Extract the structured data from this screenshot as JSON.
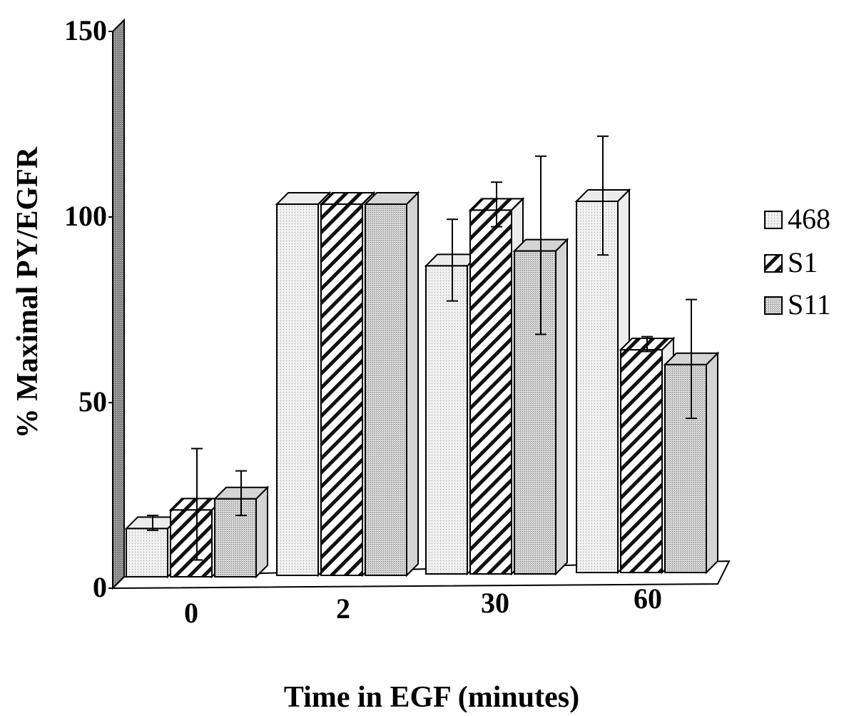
{
  "chart_data": {
    "type": "bar",
    "ylabel": "% Maximal PY/EGFR",
    "xlabel": "Time in EGF (minutes)",
    "categories": [
      "0",
      "2",
      "30",
      "60"
    ],
    "ylim": [
      0,
      150
    ],
    "yticks": [
      "0",
      "50",
      "100",
      "150"
    ],
    "series": [
      {
        "name": "468",
        "values": [
          13,
          100,
          83,
          100
        ],
        "errors": [
          2,
          0,
          11,
          16
        ],
        "pattern": "dotted-light"
      },
      {
        "name": "S1",
        "values": [
          18,
          100,
          98,
          60
        ],
        "errors": [
          15,
          0,
          6,
          2
        ],
        "pattern": "hatched"
      },
      {
        "name": "S11",
        "values": [
          21,
          100,
          87,
          56
        ],
        "errors": [
          6,
          0,
          24,
          16
        ],
        "pattern": "dotted-dark"
      }
    ],
    "legend_position": "right",
    "style": "3d"
  },
  "colors": {
    "bar_light": "#ececec",
    "bar_dark": "#d4d4d4",
    "wall": "#8a8a8a",
    "outline": "#000000"
  }
}
